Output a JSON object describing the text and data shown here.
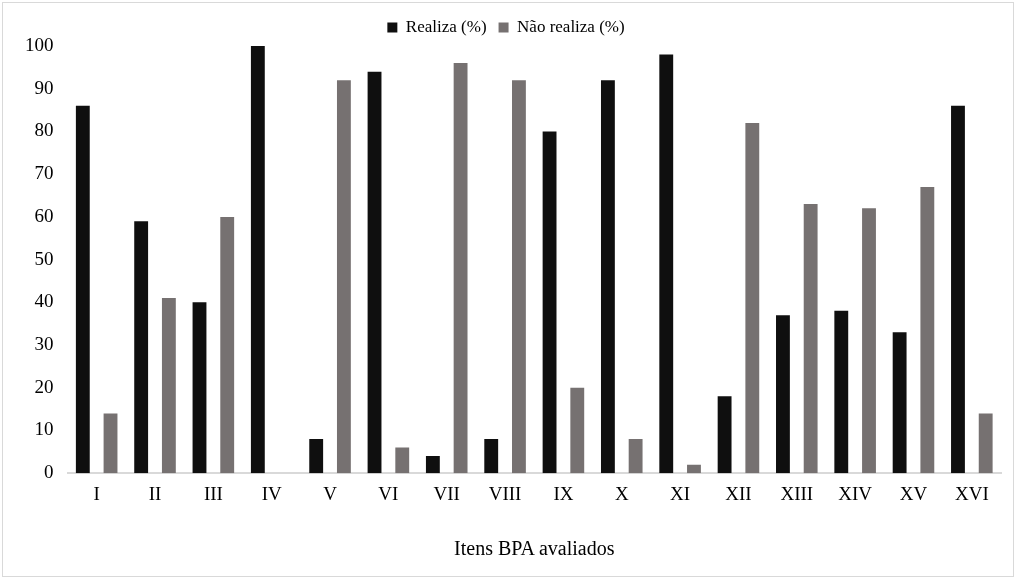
{
  "chart_data": {
    "type": "bar",
    "xlabel": "Itens BPA avaliados",
    "categories": [
      "I",
      "II",
      "III",
      "IV",
      "V",
      "VI",
      "VII",
      "VIII",
      "IX",
      "X",
      "XI",
      "XII",
      "XIII",
      "XIV",
      "XV",
      "XVI"
    ],
    "series": [
      {
        "name": "Realiza (%)",
        "color": "#0f0f0f",
        "values": [
          86,
          59,
          40,
          100,
          8,
          94,
          4,
          8,
          80,
          92,
          98,
          18,
          37,
          38,
          33,
          86
        ]
      },
      {
        "name": "Não realiza (%)",
        "color": "#767171",
        "values": [
          14,
          41,
          60,
          0,
          92,
          6,
          96,
          92,
          20,
          8,
          2,
          82,
          63,
          62,
          67,
          14
        ]
      }
    ],
    "ylim": [
      0,
      100
    ],
    "yticks": [
      0,
      10,
      20,
      30,
      40,
      50,
      60,
      70,
      80,
      90,
      100
    ],
    "grid": false,
    "legend": "top"
  }
}
